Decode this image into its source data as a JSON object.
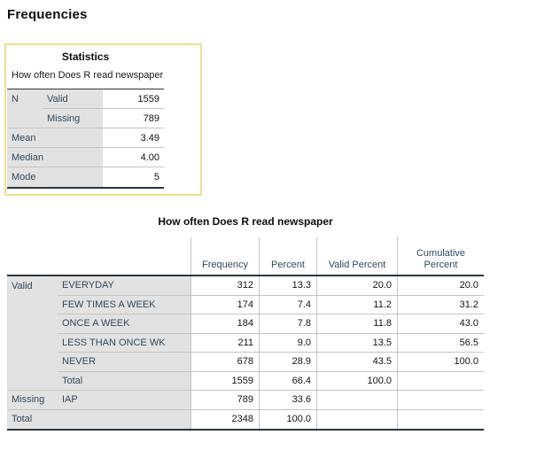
{
  "page": {
    "title": "Frequencies"
  },
  "colors": {
    "selection_border": "#F2DE8C",
    "stub_background": "#E2E2E2",
    "label_text": "#31485C",
    "value_text": "#121212",
    "separator_line": "#C4C4C4",
    "rule_line": "#2A3640"
  },
  "statistics_table": {
    "title": "Statistics",
    "caption": "How often Does R read newspaper",
    "rows": [
      {
        "label1": "N",
        "label2": "Valid",
        "value": "1559"
      },
      {
        "label1": "",
        "label2": "Missing",
        "value": "789"
      },
      {
        "label1": "Mean",
        "label2": "",
        "value": "3.49"
      },
      {
        "label1": "Median",
        "label2": "",
        "value": "4.00"
      },
      {
        "label1": "Mode",
        "label2": "",
        "value": "5"
      }
    ]
  },
  "frequency_table": {
    "title": "How often Does R read newspaper",
    "columns": {
      "frequency": "Frequency",
      "percent": "Percent",
      "valid_percent": "Valid Percent",
      "cumulative_percent": "Cumulative Percent"
    },
    "rows": [
      {
        "group": "Valid",
        "label": "EVERYDAY",
        "frequency": "312",
        "percent": "13.3",
        "valid_percent": "20.0",
        "cumulative_percent": "20.0"
      },
      {
        "group": "",
        "label": "FEW TIMES A WEEK",
        "frequency": "174",
        "percent": "7.4",
        "valid_percent": "11.2",
        "cumulative_percent": "31.2"
      },
      {
        "group": "",
        "label": "ONCE A WEEK",
        "frequency": "184",
        "percent": "7.8",
        "valid_percent": "11.8",
        "cumulative_percent": "43.0"
      },
      {
        "group": "",
        "label": "LESS THAN ONCE WK",
        "frequency": "211",
        "percent": "9.0",
        "valid_percent": "13.5",
        "cumulative_percent": "56.5"
      },
      {
        "group": "",
        "label": "NEVER",
        "frequency": "678",
        "percent": "28.9",
        "valid_percent": "43.5",
        "cumulative_percent": "100.0"
      },
      {
        "group": "",
        "label": "Total",
        "frequency": "1559",
        "percent": "66.4",
        "valid_percent": "100.0",
        "cumulative_percent": ""
      },
      {
        "group": "Missing",
        "label": "IAP",
        "frequency": "789",
        "percent": "33.6",
        "valid_percent": "",
        "cumulative_percent": ""
      },
      {
        "group": "Total",
        "label": "",
        "frequency": "2348",
        "percent": "100.0",
        "valid_percent": "",
        "cumulative_percent": ""
      }
    ]
  }
}
